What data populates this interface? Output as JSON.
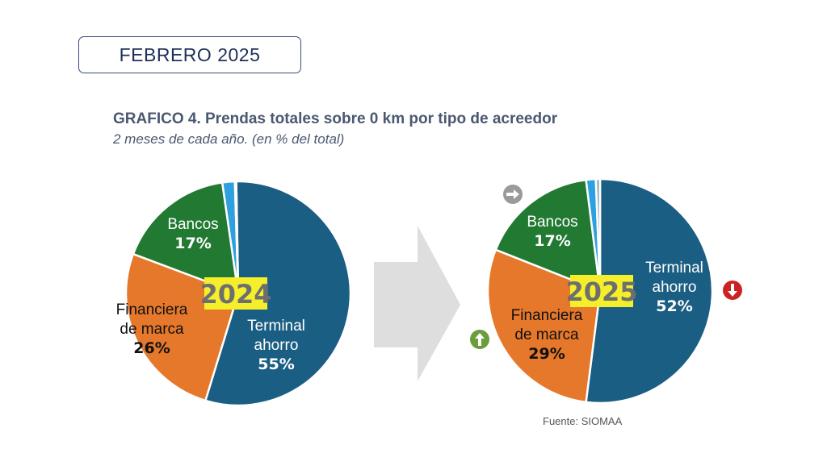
{
  "period": "FEBRERO 2025",
  "source": "Fuente: SIOMAA",
  "colors": {
    "terminal": "#1b5e83",
    "financiera": "#e5782b",
    "bancos": "#227a32",
    "otros": "#2ea0e0",
    "otros2": "#9ab0c0",
    "year_label_bg": "#f4ef2a",
    "year_label_text": "#6e6e6e",
    "arrow_gray": "#dedede",
    "indicator_up": "#6a9e3c",
    "indicator_down": "#cc2222",
    "indicator_flat": "#9a9a9a"
  },
  "chart_data": {
    "type": "pie",
    "title": "GRAFICO 4. Prendas totales sobre 0 km por tipo de acreedor",
    "subtitle": "2 meses de cada año. (en % del total)",
    "pies": [
      {
        "year_label": "2024",
        "slices": [
          {
            "key": "terminal",
            "label_lines": [
              "Terminal",
              "ahorro"
            ],
            "value": 55,
            "value_label": "55%"
          },
          {
            "key": "financiera",
            "label_lines": [
              "Financiera",
              "de marca"
            ],
            "value": 26,
            "value_label": "26%"
          },
          {
            "key": "bancos",
            "label_lines": [
              "Bancos"
            ],
            "value": 17,
            "value_label": "17%"
          },
          {
            "key": "otros",
            "label_lines": [],
            "value": 1.8,
            "value_label": ""
          },
          {
            "key": "otros2",
            "label_lines": [],
            "value": 0.2,
            "value_label": ""
          }
        ]
      },
      {
        "year_label": "2025",
        "slices": [
          {
            "key": "terminal",
            "label_lines": [
              "Terminal",
              "ahorro"
            ],
            "value": 52,
            "value_label": "52%",
            "trend": "down"
          },
          {
            "key": "financiera",
            "label_lines": [
              "Financiera",
              "de marca"
            ],
            "value": 29,
            "value_label": "29%",
            "trend": "up"
          },
          {
            "key": "bancos",
            "label_lines": [
              "Bancos"
            ],
            "value": 17,
            "value_label": "17%",
            "trend": "flat"
          },
          {
            "key": "otros",
            "label_lines": [],
            "value": 1.4,
            "value_label": ""
          },
          {
            "key": "otros2",
            "label_lines": [],
            "value": 0.6,
            "value_label": ""
          }
        ]
      }
    ]
  }
}
